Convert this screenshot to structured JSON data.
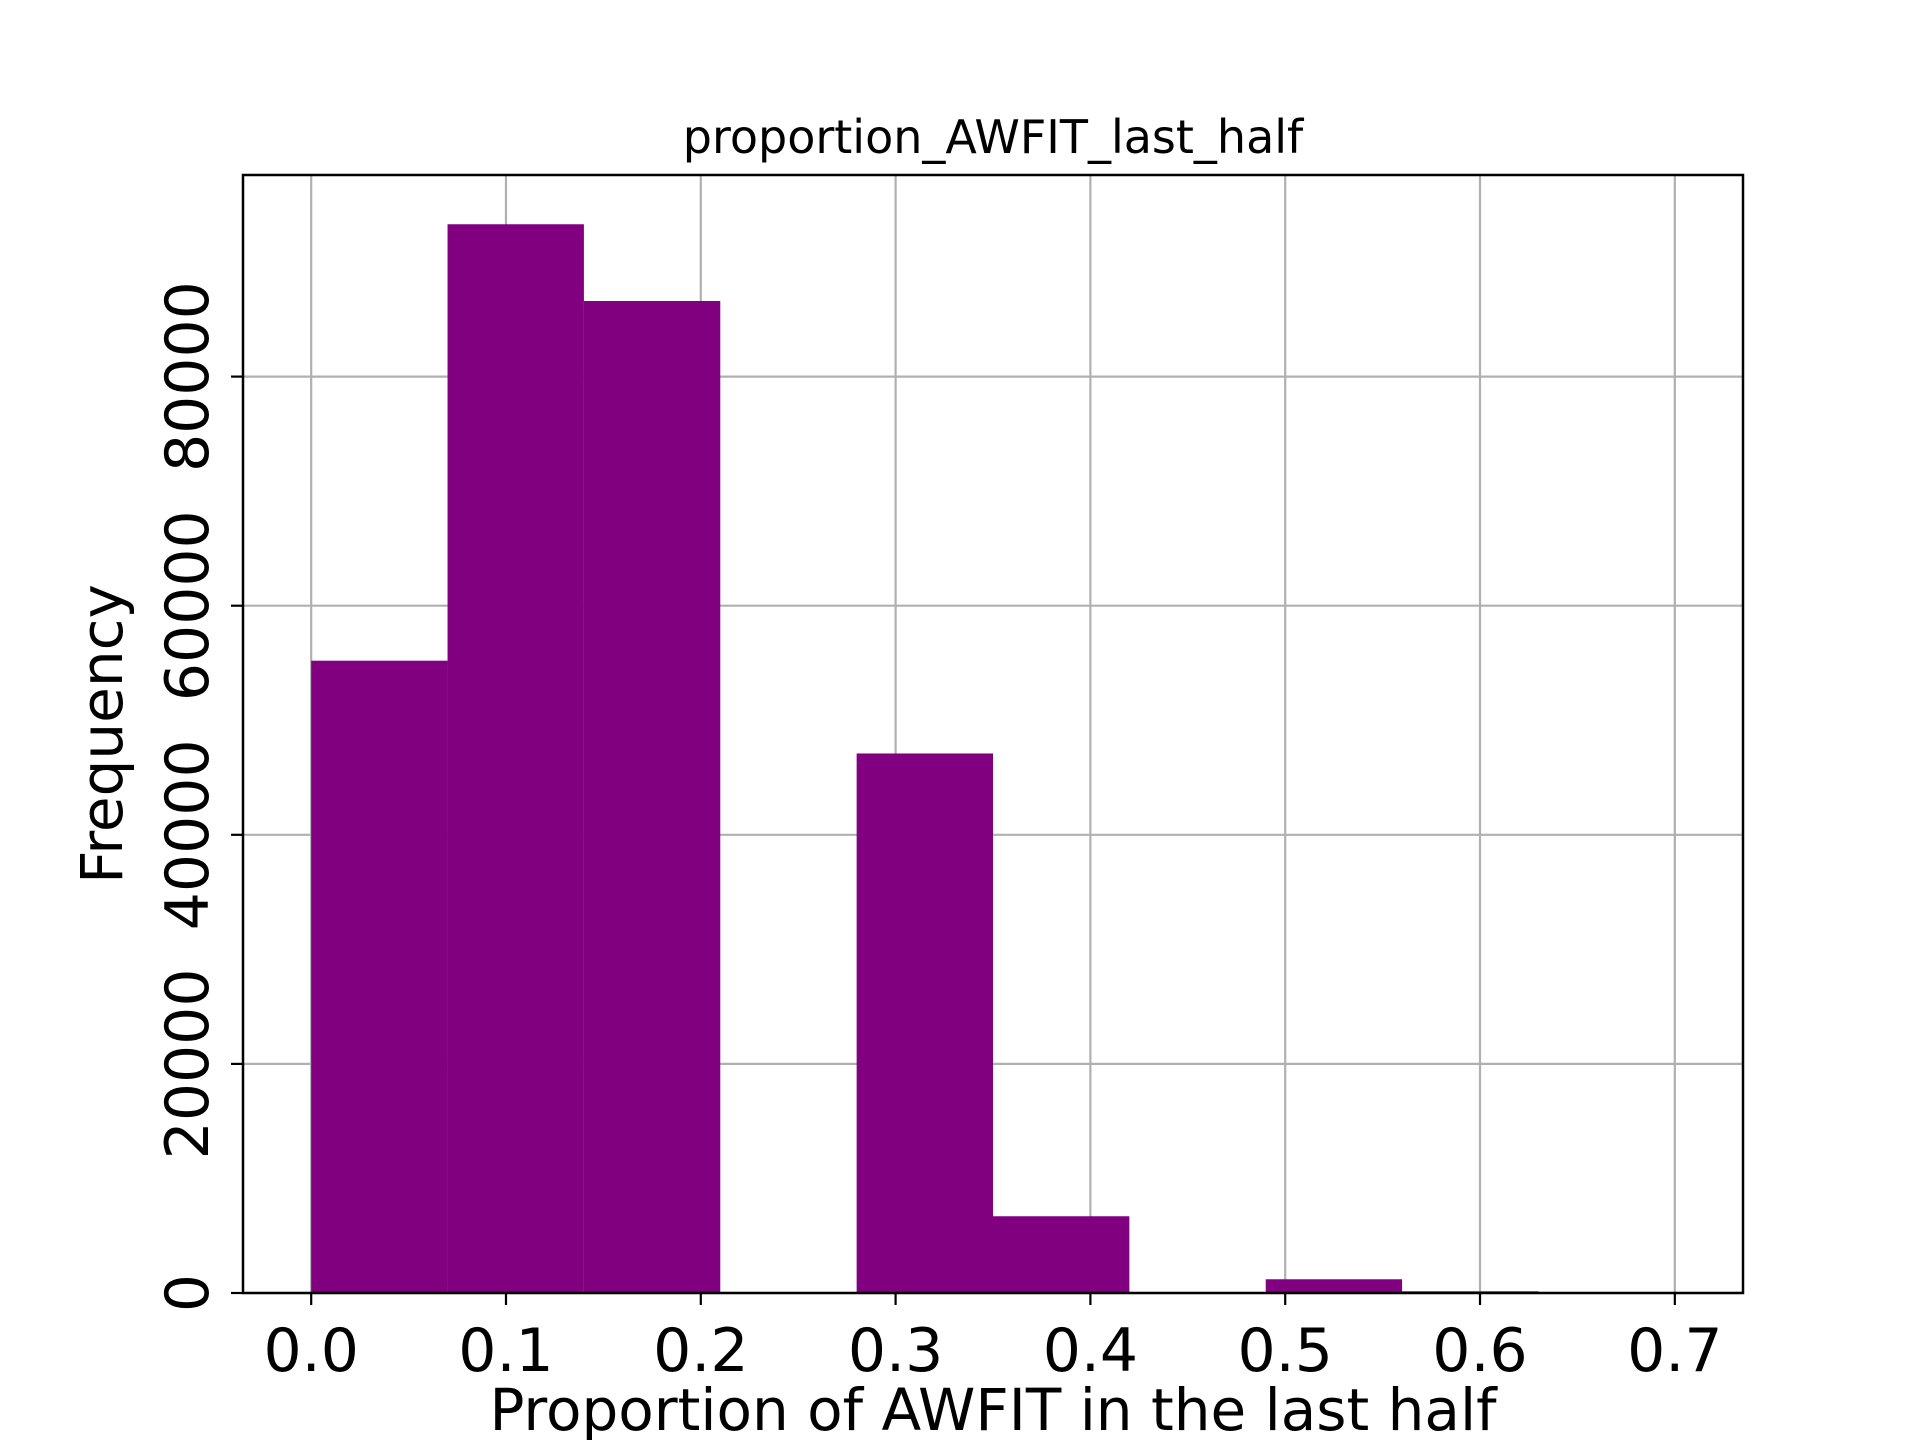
{
  "chart_data": {
    "type": "bar",
    "title": "proportion_AWFIT_last_half",
    "xlabel": "Proportion of AWFIT in the last half",
    "ylabel": "Frequency",
    "xlim": [
      -0.035,
      0.735
    ],
    "ylim": [
      0,
      97600
    ],
    "grid": true,
    "color": "#800080",
    "bins": [
      {
        "start": 0.0,
        "end": 0.07,
        "value": 55200
      },
      {
        "start": 0.07,
        "end": 0.14,
        "value": 93300
      },
      {
        "start": 0.14,
        "end": 0.21,
        "value": 86600
      },
      {
        "start": 0.21,
        "end": 0.28,
        "value": 0
      },
      {
        "start": 0.28,
        "end": 0.35,
        "value": 47100
      },
      {
        "start": 0.35,
        "end": 0.42,
        "value": 6700
      },
      {
        "start": 0.42,
        "end": 0.49,
        "value": 0
      },
      {
        "start": 0.49,
        "end": 0.56,
        "value": 1200
      },
      {
        "start": 0.56,
        "end": 0.63,
        "value": 150
      },
      {
        "start": 0.63,
        "end": 0.7,
        "value": 0
      }
    ],
    "x_ticks": [
      {
        "value": 0.0,
        "label": "0.0"
      },
      {
        "value": 0.1,
        "label": "0.1"
      },
      {
        "value": 0.2,
        "label": "0.2"
      },
      {
        "value": 0.3,
        "label": "0.3"
      },
      {
        "value": 0.4,
        "label": "0.4"
      },
      {
        "value": 0.5,
        "label": "0.5"
      },
      {
        "value": 0.6,
        "label": "0.6"
      },
      {
        "value": 0.7,
        "label": "0.7"
      }
    ],
    "y_ticks": [
      {
        "value": 0,
        "label": "0"
      },
      {
        "value": 20000,
        "label": "20000"
      },
      {
        "value": 40000,
        "label": "40000"
      },
      {
        "value": 60000,
        "label": "60000"
      },
      {
        "value": 80000,
        "label": "80000"
      }
    ]
  }
}
